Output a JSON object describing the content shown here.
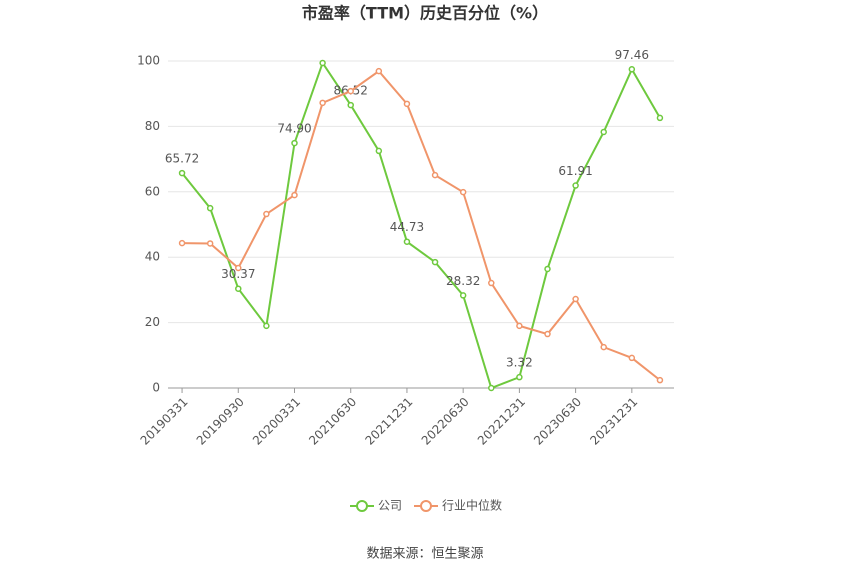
{
  "chart_data": {
    "type": "line",
    "title": "市盈率（TTM）历史百分位（%）",
    "source": "数据来源：恒生聚源",
    "categories": [
      "20190331",
      null,
      "20190930",
      null,
      "20200331",
      null,
      "20210630",
      null,
      "20211231",
      null,
      "20220630",
      null,
      "20221231",
      null,
      "20230630",
      null,
      "20231231",
      null
    ],
    "series": [
      {
        "name": "公司",
        "color": "#6ec93e",
        "values": [
          65.72,
          55.0,
          30.37,
          19.0,
          74.9,
          99.4,
          86.52,
          72.5,
          44.73,
          38.5,
          28.32,
          0,
          3.32,
          36.4,
          61.91,
          78.3,
          97.46,
          82.6
        ],
        "value_labels": [
          "65.72",
          null,
          "30.37",
          null,
          "74.90",
          null,
          "86.52",
          null,
          "44.73",
          null,
          "28.32",
          null,
          "3.32",
          null,
          "61.91",
          null,
          "97.46",
          null
        ]
      },
      {
        "name": "行业中位数",
        "color": "#f0956a",
        "values": [
          44.3,
          44.2,
          36.7,
          53.2,
          59.0,
          87.2,
          90.8,
          96.9,
          86.9,
          65.1,
          59.9,
          32.1,
          19.0,
          16.5,
          27.2,
          12.5,
          9.2,
          2.4
        ]
      }
    ],
    "ylim": [
      0,
      100
    ],
    "yticks": [
      0,
      20,
      40,
      60,
      80,
      100
    ],
    "grid": true
  }
}
